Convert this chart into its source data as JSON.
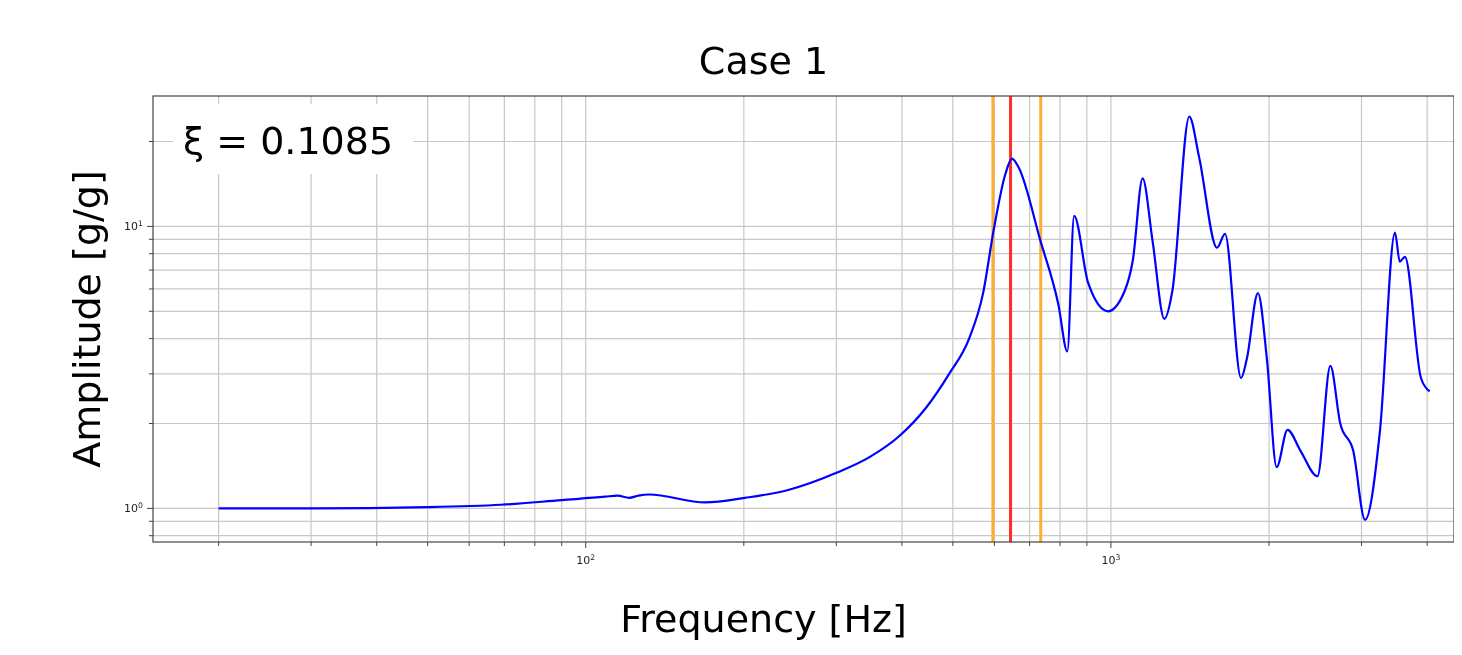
{
  "chart_data": {
    "type": "line",
    "title": "Case 1",
    "xlabel": "Frequency [Hz]",
    "ylabel": "Amplitude [g/g]",
    "annotations": [
      "ξ = 0.1085"
    ],
    "series": [
      {
        "color": "#0000ff",
        "x": [
          20,
          30,
          50,
          69,
          90,
          109,
          115,
          121,
          126,
          132,
          169,
          201,
          242,
          301,
          347,
          396,
          445,
          492,
          537,
          571,
          598,
          630,
          648,
          667,
          734,
          794,
          826,
          851,
          905,
          987,
          1062,
          1101,
          1149,
          1200,
          1264,
          1309,
          1410,
          1472,
          1592,
          1649,
          1769,
          1815,
          1905,
          1981,
          2068,
          2169,
          2296,
          2473,
          2617,
          2733,
          2893,
          3047,
          3254,
          3474,
          3548,
          3629,
          3893,
          4044
        ],
        "values": [
          1.0,
          1.0,
          1.01,
          1.03,
          1.07,
          1.1,
          1.11,
          1.09,
          1.11,
          1.12,
          1.05,
          1.09,
          1.16,
          1.34,
          1.52,
          1.81,
          2.28,
          3.0,
          4.0,
          5.8,
          9.7,
          15.4,
          17.4,
          16.2,
          8.9,
          5.3,
          3.6,
          10.9,
          6.3,
          5.0,
          5.9,
          7.6,
          14.8,
          8.9,
          4.7,
          5.9,
          24.5,
          17.6,
          8.4,
          9.4,
          2.9,
          3.4,
          5.8,
          3.4,
          1.4,
          1.9,
          1.6,
          1.3,
          3.2,
          2.0,
          1.6,
          0.91,
          1.9,
          9.5,
          7.5,
          7.8,
          2.9,
          2.6
        ]
      }
    ],
    "log": "xy",
    "xlim": [
      15,
      4500
    ],
    "ylim": [
      0.76,
      29
    ],
    "xticks": [
      {
        "value": 20,
        "label": null
      },
      {
        "value": 30,
        "label": null
      },
      {
        "value": 40,
        "label": null
      },
      {
        "value": 50,
        "label": null
      },
      {
        "value": 60,
        "label": null
      },
      {
        "value": 70,
        "label": null
      },
      {
        "value": 80,
        "label": null
      },
      {
        "value": 90,
        "label": null
      },
      {
        "value": 100,
        "label": "10$^{2}$"
      },
      {
        "value": 200,
        "label": null
      },
      {
        "value": 300,
        "label": null
      },
      {
        "value": 400,
        "label": null
      },
      {
        "value": 500,
        "label": null
      },
      {
        "value": 600,
        "label": null
      },
      {
        "value": 700,
        "label": null
      },
      {
        "value": 800,
        "label": null
      },
      {
        "value": 900,
        "label": null
      },
      {
        "value": 1000,
        "label": "10$^{3}$"
      },
      {
        "value": 2000,
        "label": null
      },
      {
        "value": 3000,
        "label": null
      },
      {
        "value": 4000,
        "label": null
      }
    ],
    "yticks": [
      {
        "value": 0.8,
        "label": null
      },
      {
        "value": 0.9,
        "label": null
      },
      {
        "value": 1,
        "label": "10$^{0}$"
      },
      {
        "value": 2,
        "label": null
      },
      {
        "value": 3,
        "label": null
      },
      {
        "value": 4,
        "label": null
      },
      {
        "value": 5,
        "label": null
      },
      {
        "value": 6,
        "label": null
      },
      {
        "value": 7,
        "label": null
      },
      {
        "value": 8,
        "label": null
      },
      {
        "value": 9,
        "label": null
      },
      {
        "value": 10,
        "label": "10$^{1}$"
      },
      {
        "value": 20,
        "label": null
      }
    ],
    "grid": true,
    "ref_lines": [
      {
        "axis": "x",
        "value": 596,
        "color": "#ffae34"
      },
      {
        "axis": "x",
        "value": 644,
        "color": "#ff2a2a"
      },
      {
        "axis": "x",
        "value": 735,
        "color": "#ffae34"
      }
    ]
  }
}
